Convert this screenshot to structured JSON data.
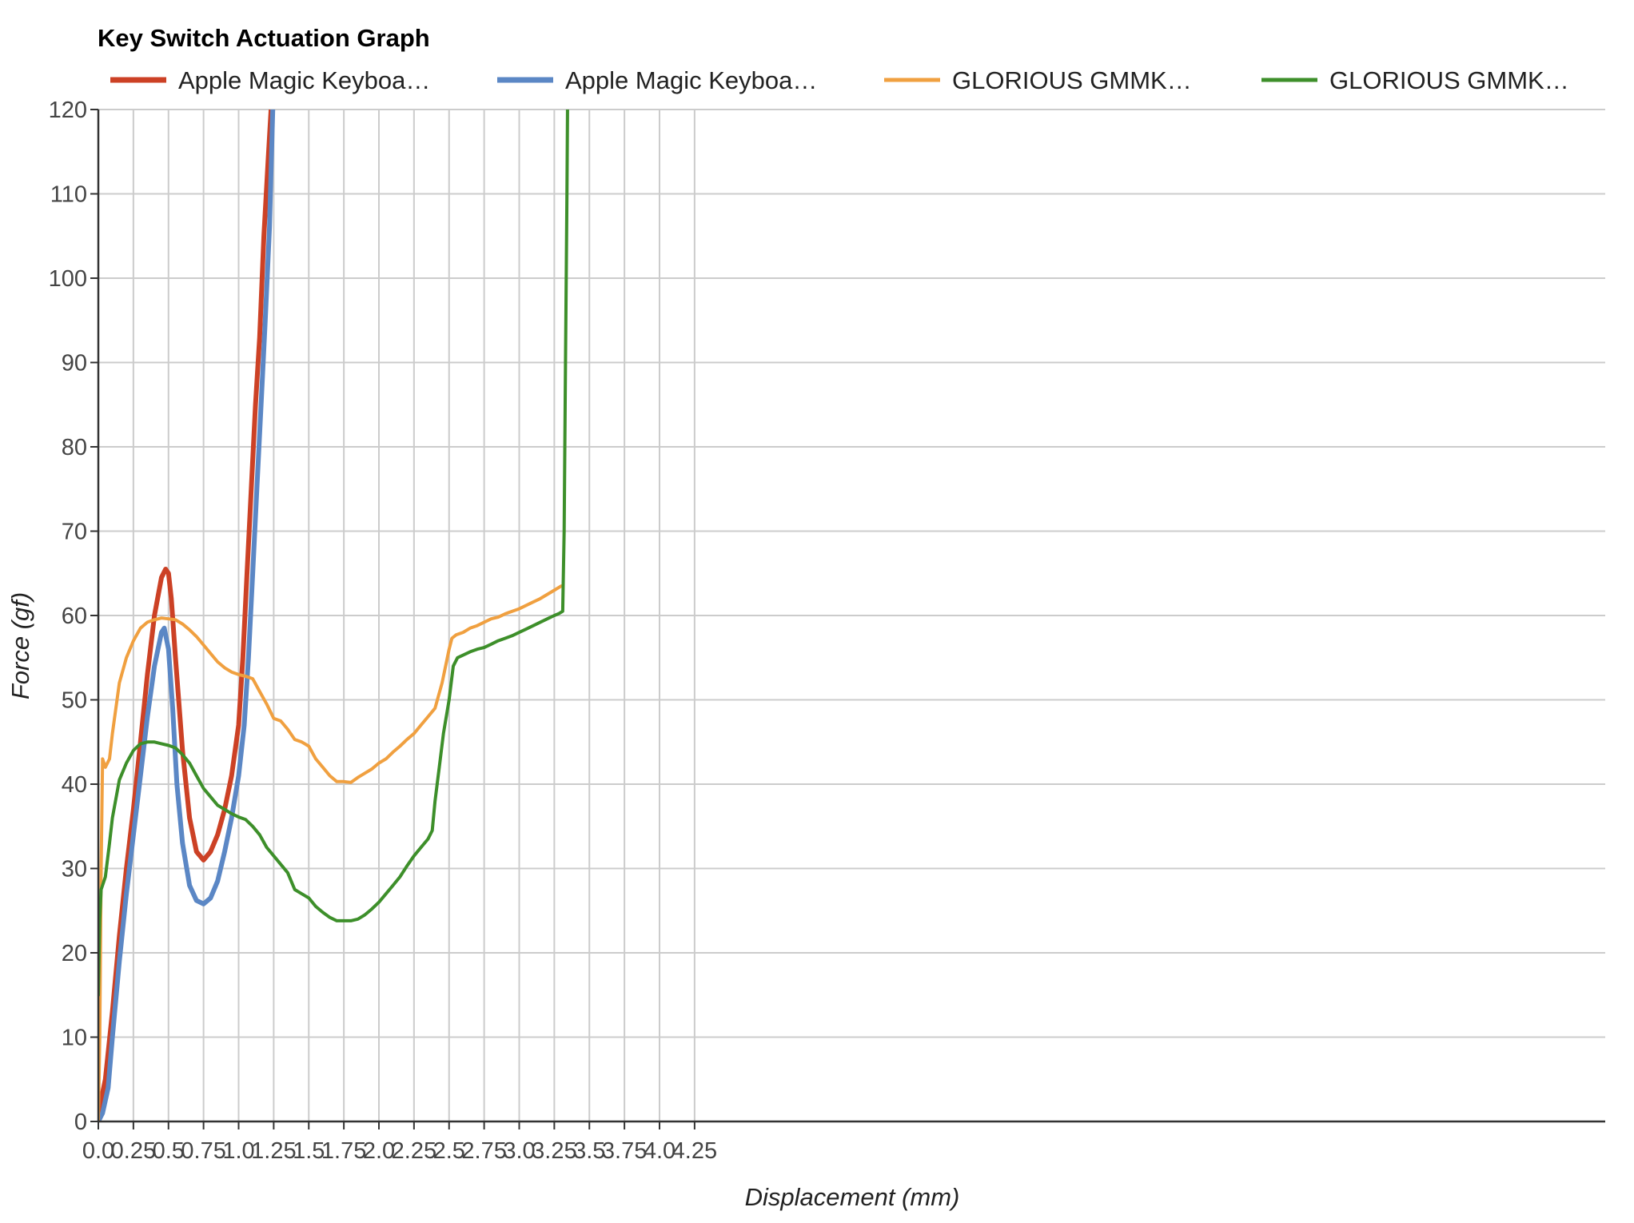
{
  "chart_data": {
    "type": "line",
    "title": "Key Switch Actuation Graph",
    "xlabel": "Displacement (mm)",
    "ylabel": "Force (gf)",
    "xlim": [
      0,
      4.3
    ],
    "ylim": [
      0,
      120
    ],
    "x_ticks": [
      "0.0",
      "0.25",
      "0.5",
      "0.75",
      "1.0",
      "1.25",
      "1.5",
      "1.75",
      "2.0",
      "2.25",
      "2.5",
      "2.75",
      "3.0",
      "3.25",
      "3.5",
      "3.75",
      "4.0",
      "4.25"
    ],
    "y_ticks": [
      "0",
      "10",
      "20",
      "30",
      "40",
      "50",
      "60",
      "70",
      "80",
      "90",
      "100",
      "110",
      "120"
    ],
    "grid": true,
    "legend_position": "top",
    "series": [
      {
        "name": "Apple Magic Keyboa…",
        "color": "#cc4125",
        "width": 6,
        "points": [
          [
            0,
            1
          ],
          [
            0.05,
            5
          ],
          [
            0.1,
            13
          ],
          [
            0.15,
            22
          ],
          [
            0.2,
            30
          ],
          [
            0.25,
            37
          ],
          [
            0.3,
            45
          ],
          [
            0.35,
            53
          ],
          [
            0.4,
            60
          ],
          [
            0.45,
            64.5
          ],
          [
            0.48,
            65.5
          ],
          [
            0.5,
            65
          ],
          [
            0.52,
            62
          ],
          [
            0.55,
            55
          ],
          [
            0.6,
            44
          ],
          [
            0.65,
            36
          ],
          [
            0.7,
            32
          ],
          [
            0.75,
            31
          ],
          [
            0.8,
            32
          ],
          [
            0.85,
            34
          ],
          [
            0.9,
            37
          ],
          [
            0.95,
            41
          ],
          [
            1.0,
            47
          ],
          [
            1.03,
            55
          ],
          [
            1.06,
            65
          ],
          [
            1.09,
            75
          ],
          [
            1.12,
            85
          ],
          [
            1.15,
            93
          ],
          [
            1.18,
            105
          ],
          [
            1.21,
            114
          ],
          [
            1.235,
            121
          ]
        ]
      },
      {
        "name": "Apple Magic Keyboa…",
        "color": "#5b87c5",
        "width": 6,
        "points": [
          [
            0,
            0
          ],
          [
            0.03,
            1
          ],
          [
            0.07,
            4
          ],
          [
            0.1,
            10
          ],
          [
            0.15,
            19
          ],
          [
            0.2,
            27
          ],
          [
            0.25,
            34
          ],
          [
            0.3,
            41
          ],
          [
            0.35,
            48
          ],
          [
            0.4,
            54
          ],
          [
            0.45,
            58
          ],
          [
            0.47,
            58.5
          ],
          [
            0.5,
            56
          ],
          [
            0.53,
            49
          ],
          [
            0.56,
            40
          ],
          [
            0.6,
            33
          ],
          [
            0.65,
            28
          ],
          [
            0.7,
            26.2
          ],
          [
            0.75,
            25.8
          ],
          [
            0.8,
            26.5
          ],
          [
            0.85,
            28.5
          ],
          [
            0.9,
            32
          ],
          [
            0.95,
            36
          ],
          [
            1.0,
            41
          ],
          [
            1.04,
            47
          ],
          [
            1.07,
            55
          ],
          [
            1.1,
            65
          ],
          [
            1.13,
            75
          ],
          [
            1.16,
            85
          ],
          [
            1.19,
            95
          ],
          [
            1.22,
            106
          ],
          [
            1.245,
            121
          ]
        ]
      },
      {
        "name": "GLORIOUS GMMK…",
        "color": "#f0a040",
        "width": 4,
        "points": [
          [
            0,
            0
          ],
          [
            0.01,
            10
          ],
          [
            0.02,
            30
          ],
          [
            0.03,
            43
          ],
          [
            0.05,
            42
          ],
          [
            0.08,
            43
          ],
          [
            0.1,
            46
          ],
          [
            0.15,
            52
          ],
          [
            0.2,
            55
          ],
          [
            0.25,
            57
          ],
          [
            0.3,
            58.5
          ],
          [
            0.35,
            59.2
          ],
          [
            0.4,
            59.5
          ],
          [
            0.45,
            59.7
          ],
          [
            0.5,
            59.6
          ],
          [
            0.55,
            59.5
          ],
          [
            0.6,
            59
          ],
          [
            0.65,
            58.3
          ],
          [
            0.7,
            57.5
          ],
          [
            0.75,
            56.5
          ],
          [
            0.8,
            55.5
          ],
          [
            0.85,
            54.5
          ],
          [
            0.9,
            53.8
          ],
          [
            0.95,
            53.3
          ],
          [
            1.0,
            53
          ],
          [
            1.05,
            52.8
          ],
          [
            1.1,
            52.5
          ],
          [
            1.15,
            51
          ],
          [
            1.2,
            49.5
          ],
          [
            1.25,
            47.8
          ],
          [
            1.3,
            47.5
          ],
          [
            1.35,
            46.5
          ],
          [
            1.4,
            45.3
          ],
          [
            1.45,
            45
          ],
          [
            1.5,
            44.5
          ],
          [
            1.55,
            43
          ],
          [
            1.6,
            42
          ],
          [
            1.65,
            41
          ],
          [
            1.7,
            40.3
          ],
          [
            1.75,
            40.3
          ],
          [
            1.8,
            40.2
          ],
          [
            1.85,
            40.8
          ],
          [
            1.9,
            41.3
          ],
          [
            1.95,
            41.8
          ],
          [
            2.0,
            42.5
          ],
          [
            2.05,
            43
          ],
          [
            2.1,
            43.8
          ],
          [
            2.15,
            44.5
          ],
          [
            2.2,
            45.3
          ],
          [
            2.25,
            46
          ],
          [
            2.3,
            47
          ],
          [
            2.35,
            48
          ],
          [
            2.4,
            49
          ],
          [
            2.45,
            52
          ],
          [
            2.5,
            56
          ],
          [
            2.52,
            57.3
          ],
          [
            2.55,
            57.7
          ],
          [
            2.6,
            58
          ],
          [
            2.65,
            58.5
          ],
          [
            2.7,
            58.8
          ],
          [
            2.75,
            59.2
          ],
          [
            2.8,
            59.6
          ],
          [
            2.85,
            59.8
          ],
          [
            2.9,
            60.2
          ],
          [
            2.95,
            60.5
          ],
          [
            3.0,
            60.8
          ],
          [
            3.05,
            61.2
          ],
          [
            3.1,
            61.6
          ],
          [
            3.15,
            62
          ],
          [
            3.2,
            62.5
          ],
          [
            3.25,
            63
          ],
          [
            3.3,
            63.5
          ],
          [
            3.31,
            63.5
          ]
        ]
      },
      {
        "name": "GLORIOUS GMMK…",
        "color": "#3d8f2a",
        "width": 4,
        "points": [
          [
            0,
            15
          ],
          [
            0.01,
            24
          ],
          [
            0.02,
            27.5
          ],
          [
            0.05,
            29
          ],
          [
            0.08,
            33
          ],
          [
            0.1,
            36
          ],
          [
            0.15,
            40.5
          ],
          [
            0.2,
            42.5
          ],
          [
            0.25,
            44
          ],
          [
            0.3,
            44.8
          ],
          [
            0.35,
            45
          ],
          [
            0.4,
            45
          ],
          [
            0.45,
            44.8
          ],
          [
            0.5,
            44.6
          ],
          [
            0.55,
            44.3
          ],
          [
            0.6,
            43.5
          ],
          [
            0.65,
            42.5
          ],
          [
            0.7,
            41
          ],
          [
            0.75,
            39.5
          ],
          [
            0.8,
            38.5
          ],
          [
            0.85,
            37.5
          ],
          [
            0.9,
            37
          ],
          [
            0.95,
            36.5
          ],
          [
            1.0,
            36.1
          ],
          [
            1.05,
            35.8
          ],
          [
            1.1,
            35
          ],
          [
            1.15,
            34
          ],
          [
            1.2,
            32.5
          ],
          [
            1.25,
            31.5
          ],
          [
            1.3,
            30.5
          ],
          [
            1.35,
            29.5
          ],
          [
            1.4,
            27.5
          ],
          [
            1.45,
            27
          ],
          [
            1.5,
            26.5
          ],
          [
            1.55,
            25.5
          ],
          [
            1.6,
            24.8
          ],
          [
            1.65,
            24.2
          ],
          [
            1.7,
            23.8
          ],
          [
            1.75,
            23.8
          ],
          [
            1.8,
            23.8
          ],
          [
            1.85,
            24
          ],
          [
            1.9,
            24.5
          ],
          [
            1.95,
            25.2
          ],
          [
            2.0,
            26
          ],
          [
            2.05,
            27
          ],
          [
            2.1,
            28
          ],
          [
            2.15,
            29
          ],
          [
            2.2,
            30.3
          ],
          [
            2.25,
            31.5
          ],
          [
            2.3,
            32.5
          ],
          [
            2.35,
            33.5
          ],
          [
            2.38,
            34.5
          ],
          [
            2.4,
            38
          ],
          [
            2.43,
            42
          ],
          [
            2.46,
            46
          ],
          [
            2.5,
            50
          ],
          [
            2.53,
            54
          ],
          [
            2.56,
            55
          ],
          [
            2.6,
            55.3
          ],
          [
            2.65,
            55.7
          ],
          [
            2.7,
            56
          ],
          [
            2.75,
            56.2
          ],
          [
            2.8,
            56.6
          ],
          [
            2.85,
            57
          ],
          [
            2.9,
            57.3
          ],
          [
            2.95,
            57.6
          ],
          [
            3.0,
            58
          ],
          [
            3.05,
            58.4
          ],
          [
            3.1,
            58.8
          ],
          [
            3.15,
            59.2
          ],
          [
            3.2,
            59.6
          ],
          [
            3.25,
            60
          ],
          [
            3.28,
            60.2
          ],
          [
            3.31,
            60.5
          ],
          [
            3.32,
            70
          ],
          [
            3.33,
            90
          ],
          [
            3.34,
            110
          ],
          [
            3.345,
            121
          ]
        ]
      }
    ]
  }
}
